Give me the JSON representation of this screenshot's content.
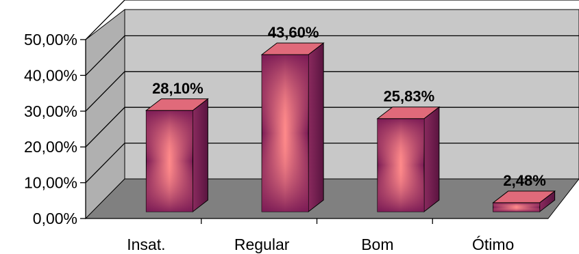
{
  "chart_data": {
    "type": "bar",
    "categories": [
      "Insat.",
      "Regular",
      "Bom",
      "Ótimo"
    ],
    "values": [
      28.1,
      43.6,
      25.83,
      2.48
    ],
    "data_labels": [
      "28,10%",
      "43,60%",
      "25,83%",
      "2,48%"
    ],
    "title": "",
    "xlabel": "",
    "ylabel": "",
    "ylim": [
      0,
      50
    ],
    "yticks": [
      0,
      10,
      20,
      30,
      40,
      50
    ],
    "ytick_labels": [
      "0,00%",
      "10,00%",
      "20,00%",
      "30,00%",
      "40,00%",
      "50,00%"
    ],
    "grid": true,
    "legend": "none",
    "style": "3d-column",
    "colors": {
      "bar_front_light": "#ff8a8a",
      "bar_front_dark": "#7a1a55",
      "bar_side": "#6b1e4a",
      "bar_top": "#e06a7a",
      "back_wall": "#c8c8c8",
      "side_wall": "#b0b0b0",
      "floor": "#808080",
      "gridline": "#000000"
    }
  }
}
